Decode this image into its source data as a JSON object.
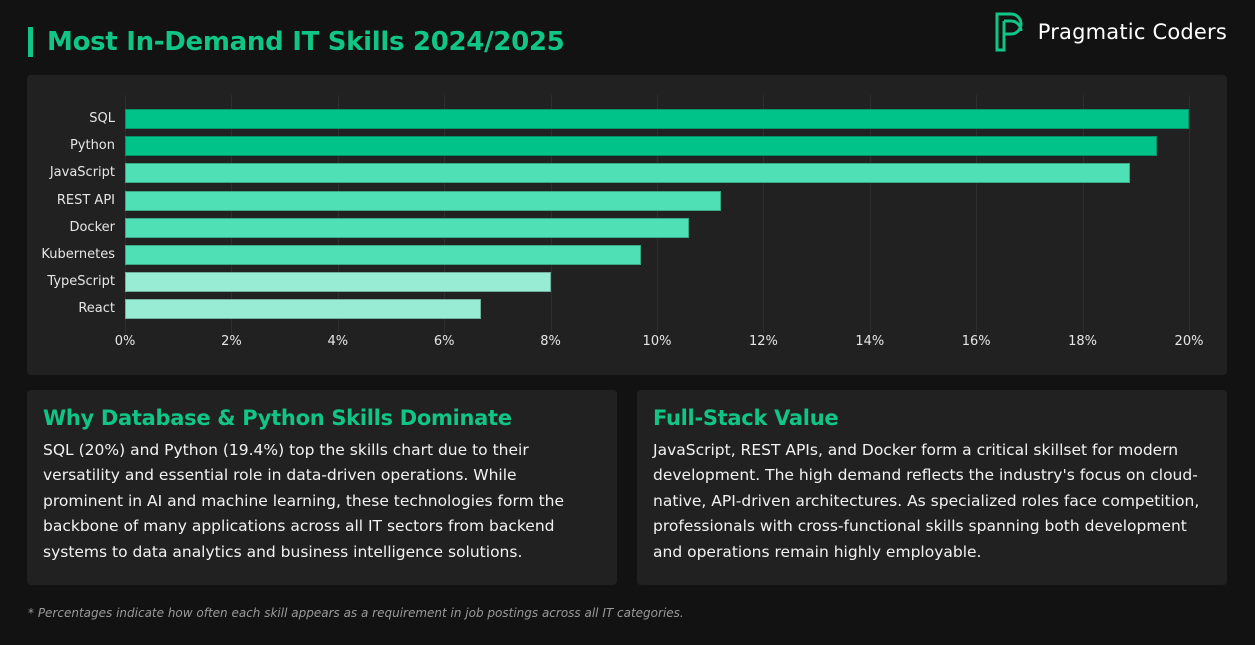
{
  "header": {
    "title": "Most In-Demand IT Skills 2024/2025",
    "accent_color": "#10c585"
  },
  "brand": {
    "name": "Pragmatic Coders",
    "logo_icon": "pragmatic-coders-p-logo"
  },
  "chart_data": {
    "type": "bar",
    "orientation": "horizontal",
    "title": "Most In-Demand IT Skills 2024/2025",
    "xlabel": "",
    "ylabel": "",
    "categories": [
      "SQL",
      "Python",
      "JavaScript",
      "REST API",
      "Docker",
      "Kubernetes",
      "TypeScript",
      "React"
    ],
    "values": [
      20.0,
      19.4,
      18.9,
      11.2,
      10.6,
      9.7,
      8.0,
      6.7
    ],
    "colors": [
      "#00c389",
      "#00c389",
      "#4fe0b6",
      "#4fe0b6",
      "#4fe0b6",
      "#4fe0b6",
      "#99ecd4",
      "#99ecd4"
    ],
    "xlim": [
      0,
      20
    ],
    "x_ticks": [
      "0%",
      "2%",
      "4%",
      "6%",
      "8%",
      "10%",
      "12%",
      "14%",
      "16%",
      "18%",
      "20%"
    ],
    "grid": "vertical",
    "legend": "none",
    "unit": "%"
  },
  "cards": [
    {
      "title": "Why Database & Python Skills Dominate",
      "body": "SQL (20%) and Python (19.4%) top the skills chart due to their versatility and essential role in data-driven operations. While prominent in AI and machine learning, these technologies form the backbone of many applications across all IT sectors from backend systems to data analytics and business intelligence solutions."
    },
    {
      "title": "Full-Stack Value",
      "body": "JavaScript, REST APIs, and Docker form a critical skillset for modern development. The high demand reflects the industry's focus on cloud-native, API-driven architectures. As specialized roles face competition, professionals with cross-functional skills spanning both development and operations remain highly employable."
    }
  ],
  "footnote": "* Percentages indicate how often each skill appears as a requirement in job postings across all IT categories."
}
